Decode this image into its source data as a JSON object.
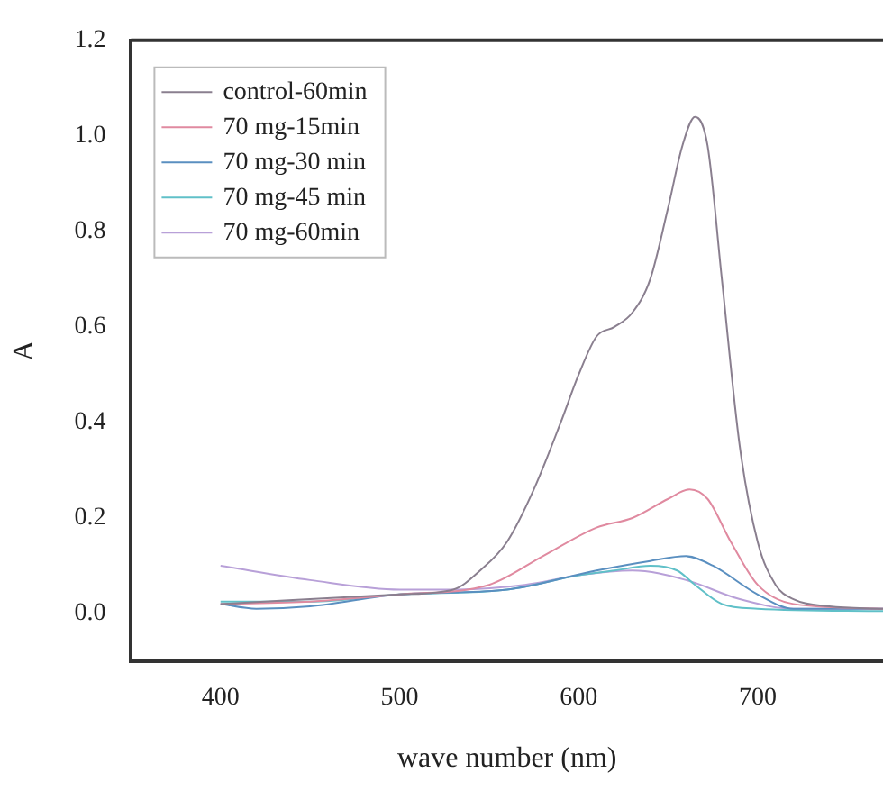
{
  "chart_data": {
    "type": "line",
    "xlabel": "wave number (nm)",
    "ylabel": "A",
    "xlim": [
      350,
      770
    ],
    "xticks": [
      400,
      500,
      600,
      700
    ],
    "ylim": [
      -0.1,
      1.2
    ],
    "yticks": [
      {
        "value": 0,
        "label": "0.0"
      },
      0.2,
      0.4,
      0.6,
      0.8,
      {
        "value": 1,
        "label": "1.0"
      },
      1.2
    ],
    "grid": false,
    "legend": "top left",
    "marker": "none",
    "line_style": "solid",
    "series": [
      {
        "name": "control-60min",
        "color": "#8a7f8f",
        "x": [
          400,
          450,
          500,
          530,
          545,
          560,
          575,
          590,
          600,
          610,
          620,
          630,
          640,
          650,
          658,
          665,
          672,
          680,
          690,
          700,
          710,
          720,
          740,
          770
        ],
        "values": [
          0.02,
          0.03,
          0.04,
          0.05,
          0.09,
          0.15,
          0.26,
          0.4,
          0.5,
          0.58,
          0.6,
          0.63,
          0.7,
          0.85,
          0.98,
          1.04,
          0.98,
          0.7,
          0.35,
          0.15,
          0.06,
          0.03,
          0.015,
          0.01
        ]
      },
      {
        "name": "70 mg-15min",
        "color": "#e08aa0",
        "x": [
          400,
          450,
          500,
          550,
          580,
          610,
          630,
          650,
          662,
          672,
          685,
          700,
          720,
          770
        ],
        "values": [
          0.02,
          0.025,
          0.04,
          0.06,
          0.12,
          0.18,
          0.2,
          0.24,
          0.26,
          0.24,
          0.15,
          0.06,
          0.02,
          0.01
        ]
      },
      {
        "name": "70 mg-30 min",
        "color": "#5a8fc0",
        "x": [
          400,
          420,
          450,
          500,
          560,
          610,
          640,
          660,
          675,
          700,
          720,
          770
        ],
        "values": [
          0.02,
          0.01,
          0.015,
          0.04,
          0.05,
          0.09,
          0.11,
          0.12,
          0.1,
          0.04,
          0.01,
          0.01
        ]
      },
      {
        "name": "70 mg-45 min",
        "color": "#60c0c8",
        "x": [
          400,
          450,
          500,
          560,
          600,
          620,
          640,
          655,
          665,
          680,
          700,
          770
        ],
        "values": [
          0.025,
          0.025,
          0.04,
          0.05,
          0.08,
          0.09,
          0.1,
          0.09,
          0.06,
          0.02,
          0.01,
          0.005
        ]
      },
      {
        "name": "70 mg-60min",
        "color": "#b8a0d8",
        "x": [
          400,
          450,
          500,
          530,
          570,
          600,
          630,
          660,
          690,
          720,
          770
        ],
        "values": [
          0.1,
          0.07,
          0.05,
          0.05,
          0.06,
          0.08,
          0.09,
          0.07,
          0.03,
          0.01,
          0.01
        ]
      }
    ]
  }
}
